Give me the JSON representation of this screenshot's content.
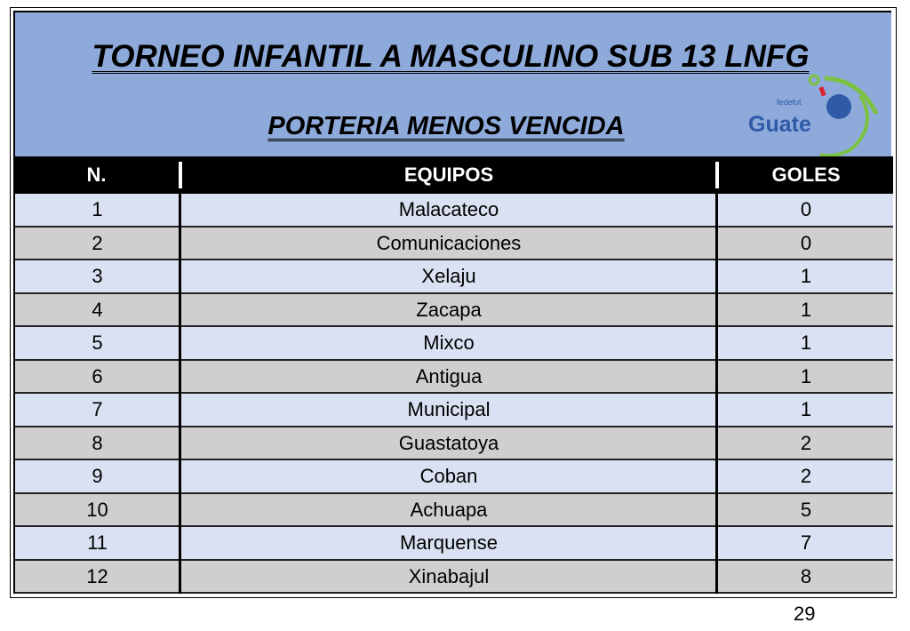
{
  "title": "TORNEO INFANTIL A MASCULINO SUB 13 LNFG",
  "subtitle": "PORTERIA MENOS VENCIDA",
  "logo": {
    "text_small": "fedefut",
    "text_large": "Guate",
    "colors": {
      "blue": "#2f5aa8",
      "green": "#7cc242",
      "red": "#e0202c"
    }
  },
  "colors": {
    "banner": "#8eaadb",
    "row_light": "#d9e1f2",
    "row_gray": "#d0cece",
    "header": "#000000"
  },
  "table": {
    "headers": [
      "N.",
      "EQUIPOS",
      "GOLES"
    ],
    "rows": [
      [
        "1",
        "Malacateco",
        "0"
      ],
      [
        "2",
        "Comunicaciones",
        "0"
      ],
      [
        "3",
        "Xelaju",
        "1"
      ],
      [
        "4",
        "Zacapa",
        "1"
      ],
      [
        "5",
        "Mixco",
        "1"
      ],
      [
        "6",
        "Antigua",
        "1"
      ],
      [
        "7",
        "Municipal",
        "1"
      ],
      [
        "8",
        "Guastatoya",
        "2"
      ],
      [
        "9",
        "Coban",
        "2"
      ],
      [
        "10",
        "Achuapa",
        "5"
      ],
      [
        "11",
        "Marquense",
        "7"
      ],
      [
        "12",
        "Xinabajul",
        "8"
      ]
    ]
  },
  "page_number": "29"
}
